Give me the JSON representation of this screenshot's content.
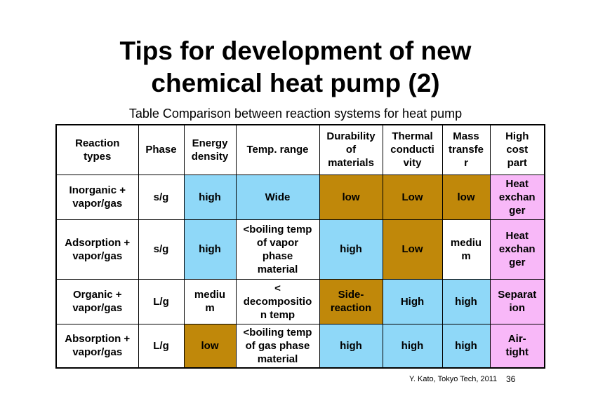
{
  "title": "Tips for development of new\nchemical heat pump (2)",
  "caption": "Table Comparison between reaction systems for heat pump",
  "colors": {
    "high": "#8fd8f8",
    "low": "#c0880a",
    "cost": "#f8b8f8",
    "none": "#ffffff"
  },
  "table": {
    "headers": [
      "Reaction\ntypes",
      "Phase",
      "Energy\ndensity",
      "Temp. range",
      "Durability\nof\nmaterials",
      "Thermal\nconducti\nvity",
      "Mass\ntransfe\nr",
      "High\ncost\npart"
    ],
    "rows": [
      {
        "cells": [
          {
            "text": "Inorganic +\nvapor/gas",
            "color": "none"
          },
          {
            "text": "s/g",
            "color": "none"
          },
          {
            "text": "high",
            "color": "high"
          },
          {
            "text": "Wide",
            "color": "high"
          },
          {
            "text": "low",
            "color": "low"
          },
          {
            "text": "Low",
            "color": "low"
          },
          {
            "text": "low",
            "color": "low"
          },
          {
            "text": "Heat\nexchan\nger",
            "color": "cost"
          }
        ]
      },
      {
        "cells": [
          {
            "text": "Adsorption +\nvapor/gas",
            "color": "none"
          },
          {
            "text": "s/g",
            "color": "none"
          },
          {
            "text": "high",
            "color": "high"
          },
          {
            "text": "<boiling temp\nof vapor\nphase\nmaterial",
            "color": "none"
          },
          {
            "text": "high",
            "color": "high"
          },
          {
            "text": "Low",
            "color": "low"
          },
          {
            "text": "mediu\nm",
            "color": "none"
          },
          {
            "text": "Heat\nexchan\nger",
            "color": "cost"
          }
        ]
      },
      {
        "cells": [
          {
            "text": "Organic +\nvapor/gas",
            "color": "none"
          },
          {
            "text": "L/g",
            "color": "none"
          },
          {
            "text": "mediu\nm",
            "color": "none"
          },
          {
            "text": "<\ndecompositio\nn temp",
            "color": "none"
          },
          {
            "text": "Side-\nreaction",
            "color": "low"
          },
          {
            "text": "High",
            "color": "high"
          },
          {
            "text": "high",
            "color": "high"
          },
          {
            "text": "Separat\nion",
            "color": "cost"
          }
        ]
      },
      {
        "cells": [
          {
            "text": "Absorption +\nvapor/gas",
            "color": "none"
          },
          {
            "text": "L/g",
            "color": "none"
          },
          {
            "text": "low",
            "color": "low"
          },
          {
            "text": "<boiling temp\nof gas phase\nmaterial",
            "color": "none"
          },
          {
            "text": "high",
            "color": "high"
          },
          {
            "text": "high",
            "color": "high"
          },
          {
            "text": "high",
            "color": "high"
          },
          {
            "text": "Air-\ntight",
            "color": "cost"
          }
        ]
      }
    ]
  },
  "footer": "Y. Kato, Tokyo Tech, 2011",
  "page_number": "36"
}
